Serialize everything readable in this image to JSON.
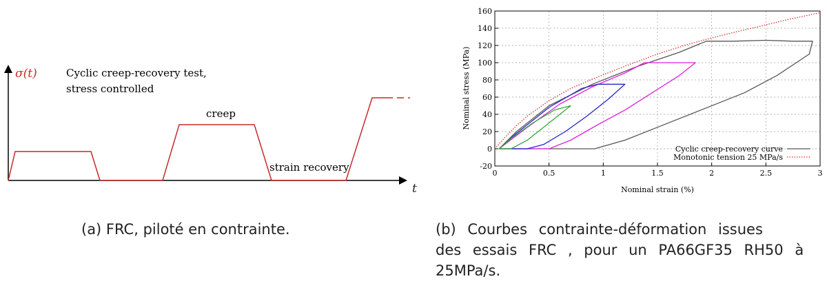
{
  "panel_a": {
    "title_line1": "Cyclic creep-recovery test,",
    "title_line2": "stress controlled",
    "y_symbol": "σ(t)",
    "x_symbol": "t",
    "label_creep": "creep",
    "label_recovery": "strain recovery",
    "caption": "(a) FRC, piloté en contrainte.",
    "colors": {
      "signal": "#c62828",
      "axes": "#000000"
    }
  },
  "panel_b": {
    "caption_line1": "(b) Courbes contrainte-déformation issues",
    "caption_line2": "des essais FRC , pour un PA66GF35 RH50 à",
    "caption_line3": "25MPa/s."
  },
  "chart_data": {
    "type": "line",
    "xlabel": "Nominal strain (%)",
    "ylabel": "Nominal stress (MPa)",
    "xlim": [
      0,
      3
    ],
    "ylim": [
      -20,
      160
    ],
    "x_ticks": [
      "0",
      "0.5",
      "1",
      "1.5",
      "2",
      "2.5",
      "3"
    ],
    "y_ticks": [
      "-20",
      "0",
      "20",
      "40",
      "60",
      "80",
      "100",
      "120",
      "140",
      "160"
    ],
    "grid": true,
    "legend_position": "bottom-right",
    "series": [
      {
        "name": "Monotonic tension 25 MPa/s",
        "color": "#d32f2f",
        "style": "dotted",
        "x": [
          0,
          0.1,
          0.2,
          0.3,
          0.5,
          0.7,
          0.9,
          1.2,
          1.5,
          1.8,
          2.1,
          2.4,
          2.7,
          3.0
        ],
        "y": [
          0,
          14,
          27,
          38,
          56,
          70,
          81,
          96,
          110,
          122,
          132,
          141,
          150,
          158
        ]
      },
      {
        "name": "Cyclic creep-recovery curve",
        "color": "#555555",
        "style": "solid",
        "x": [
          0.04,
          0.2,
          0.5,
          0.9,
          1.3,
          1.7,
          1.95,
          2.2,
          2.5,
          2.75,
          2.93,
          2.9,
          2.6,
          2.3,
          1.9,
          1.5,
          1.2,
          0.92,
          0.5,
          0.2,
          0.04
        ],
        "y": [
          0,
          20,
          50,
          75,
          95,
          112,
          125,
          125,
          126,
          125,
          125,
          110,
          85,
          65,
          45,
          25,
          10,
          0,
          0,
          0,
          0
        ]
      },
      {
        "name": "",
        "color": "#e11ee1",
        "style": "solid",
        "x": [
          0.04,
          0.3,
          0.6,
          0.9,
          1.2,
          1.38,
          1.6,
          1.85,
          1.7,
          1.45,
          1.2,
          0.95,
          0.7,
          0.5,
          0.2,
          0.04
        ],
        "y": [
          0,
          25,
          52,
          72,
          88,
          100,
          100,
          100,
          85,
          65,
          45,
          28,
          10,
          0,
          0,
          0
        ]
      },
      {
        "name": "",
        "color": "#2222cc",
        "style": "solid",
        "x": [
          0.04,
          0.2,
          0.5,
          0.8,
          0.95,
          1.1,
          1.2,
          1.05,
          0.85,
          0.65,
          0.45,
          0.3,
          0.15,
          0.04
        ],
        "y": [
          0,
          18,
          48,
          70,
          75,
          75,
          75,
          58,
          38,
          20,
          5,
          0,
          0,
          0
        ]
      },
      {
        "name": "",
        "color": "#33aa33",
        "style": "solid",
        "x": [
          0.04,
          0.15,
          0.35,
          0.55,
          0.7,
          0.6,
          0.45,
          0.3,
          0.15,
          0.04
        ],
        "y": [
          0,
          12,
          30,
          45,
          50,
          40,
          25,
          10,
          0,
          0
        ]
      }
    ]
  }
}
